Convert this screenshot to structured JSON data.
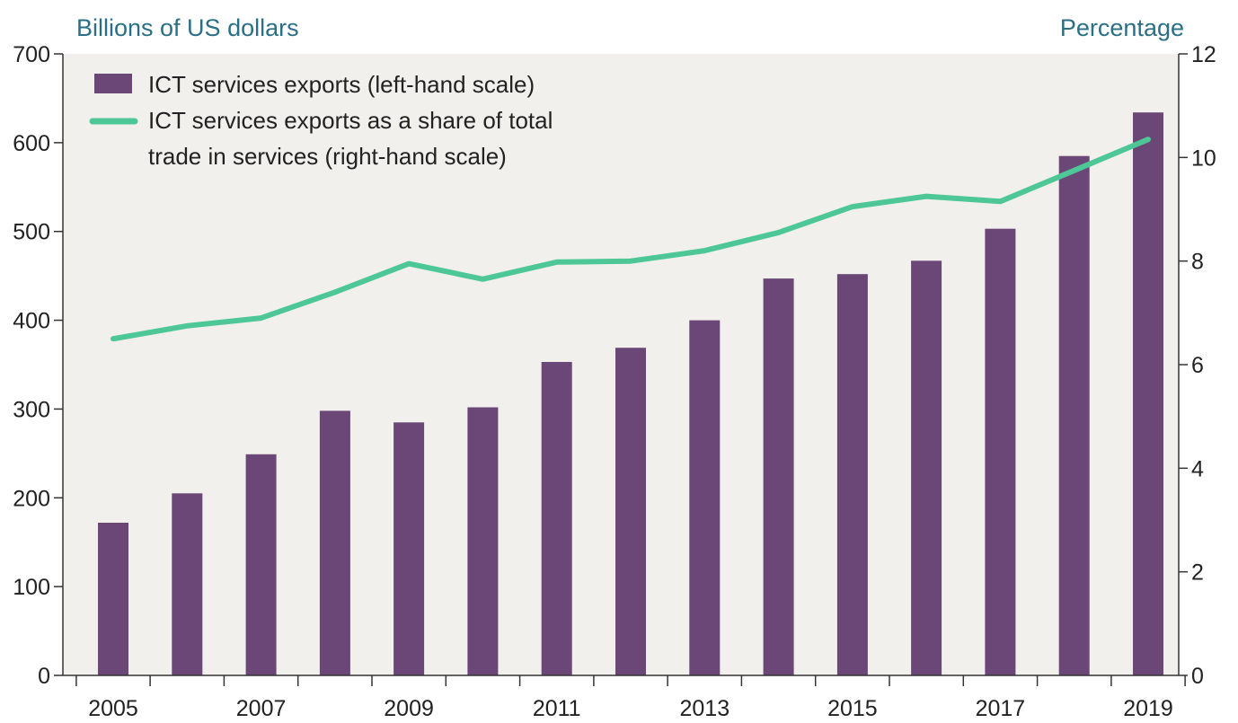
{
  "chart_data": {
    "type": "bar+line",
    "title": "",
    "x": [
      2005,
      2006,
      2007,
      2008,
      2009,
      2010,
      2011,
      2012,
      2013,
      2014,
      2015,
      2016,
      2017,
      2018,
      2019
    ],
    "x_tick_labels": [
      "2005",
      "2007",
      "2009",
      "2011",
      "2013",
      "2015",
      "2017",
      "2019"
    ],
    "left_axis": {
      "label": "Billions of US dollars",
      "ylim": [
        0,
        700
      ],
      "ticks": [
        0,
        100,
        200,
        300,
        400,
        500,
        600,
        700
      ]
    },
    "right_axis": {
      "label": "Percentage",
      "ylim": [
        0,
        12
      ],
      "ticks": [
        0,
        2,
        4,
        6,
        8,
        10,
        12
      ]
    },
    "series": [
      {
        "name": "ICT services exports (left-hand scale)",
        "type": "bar",
        "axis": "left",
        "color": "#6b4778",
        "values": [
          172,
          205,
          249,
          298,
          285,
          302,
          353,
          369,
          400,
          447,
          452,
          467,
          503,
          585,
          634
        ]
      },
      {
        "name_lines": [
          "ICT services exports as a share of total",
          "trade in services (right-hand scale)"
        ],
        "type": "line",
        "axis": "right",
        "color": "#4ec796",
        "values": [
          6.5,
          6.75,
          6.9,
          7.4,
          7.95,
          7.65,
          7.98,
          8.0,
          8.2,
          8.55,
          9.05,
          9.25,
          9.15,
          9.75,
          10.35
        ]
      }
    ],
    "legend": "top-left",
    "grid": false,
    "background_color": "#f2f0ec"
  }
}
